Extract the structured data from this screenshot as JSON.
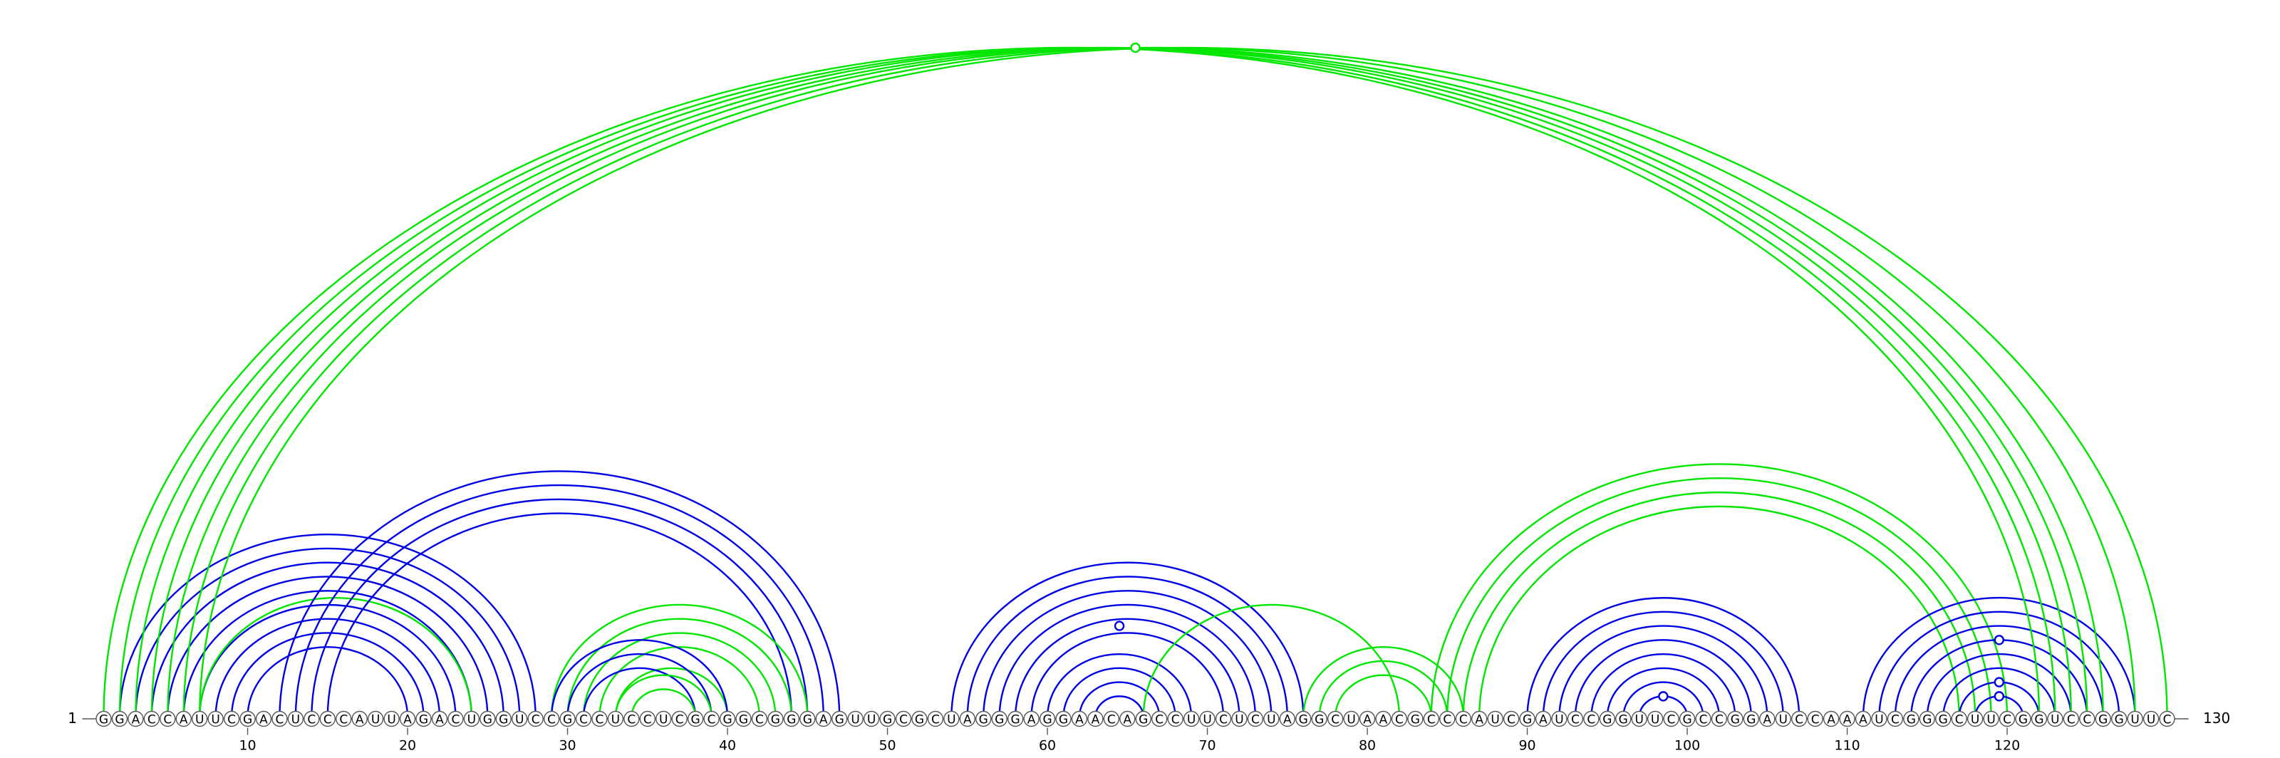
{
  "sequence": "GGACCAUUCGACUCCCAUUAGACUGGUCCGCCUCCUCGCGGCGGGAGUUGCGCUAGGGAGGAACAGCCUUCUCUAGGCUAACGCCCAUCGAUCCGGUUCGCCGGAUCCAAAUCGGGCUUCGGUCCGGUUC",
  "start_label": "1",
  "end_label": "130",
  "tick_labels": [
    "10",
    "20",
    "30",
    "40",
    "50",
    "60",
    "70",
    "80",
    "90",
    "100",
    "110",
    "120"
  ],
  "colors": {
    "blue": "#0000e6",
    "green": "#00e600",
    "nucleotide_stroke": "#555555",
    "text": "#000000"
  },
  "arc_groups": [
    {
      "color": "blue",
      "pairs": [
        [
          2,
          28
        ],
        [
          3,
          27
        ],
        [
          4,
          26
        ],
        [
          5,
          25
        ],
        [
          6,
          24
        ],
        [
          7,
          23
        ],
        [
          8,
          22
        ],
        [
          9,
          21
        ],
        [
          10,
          20
        ]
      ]
    },
    {
      "color": "green",
      "pairs": [
        [
          7,
          24
        ]
      ]
    },
    {
      "color": "blue",
      "pairs": [
        [
          12,
          47
        ],
        [
          13,
          46
        ],
        [
          14,
          45
        ],
        [
          15,
          44
        ]
      ]
    },
    {
      "color": "green",
      "pairs": [
        [
          29,
          45
        ],
        [
          30,
          44
        ],
        [
          31,
          43
        ],
        [
          32,
          42
        ],
        [
          33,
          40
        ]
      ]
    },
    {
      "color": "blue",
      "pairs": [
        [
          29,
          40
        ],
        [
          30,
          39
        ],
        [
          31,
          38
        ]
      ]
    },
    {
      "color": "green",
      "pairs": [
        [
          33,
          39
        ],
        [
          34,
          38
        ]
      ]
    },
    {
      "color": "blue",
      "pairs": [
        [
          54,
          76
        ],
        [
          55,
          75
        ],
        [
          56,
          74
        ],
        [
          57,
          73
        ],
        [
          58,
          72
        ],
        [
          59,
          71
        ]
      ]
    },
    {
      "color": "blue",
      "pairs": [
        [
          60,
          69
        ],
        [
          61,
          68
        ],
        [
          62,
          67
        ],
        [
          63,
          66
        ]
      ]
    },
    {
      "color": "green",
      "pairs": [
        [
          66,
          82
        ],
        [
          76,
          86
        ],
        [
          77,
          85
        ],
        [
          78,
          84
        ]
      ]
    },
    {
      "color": "green",
      "pairs": [
        [
          84,
          120
        ],
        [
          85,
          119
        ],
        [
          86,
          118
        ],
        [
          87,
          117
        ]
      ]
    },
    {
      "color": "blue",
      "pairs": [
        [
          90,
          107
        ],
        [
          91,
          106
        ],
        [
          92,
          105
        ],
        [
          93,
          104
        ],
        [
          94,
          103
        ],
        [
          95,
          102
        ],
        [
          96,
          101
        ],
        [
          97,
          100
        ]
      ]
    },
    {
      "color": "blue",
      "pairs": [
        [
          111,
          128
        ],
        [
          112,
          127
        ],
        [
          113,
          126
        ],
        [
          114,
          125
        ],
        [
          115,
          124
        ],
        [
          116,
          123
        ],
        [
          117,
          122
        ],
        [
          118,
          121
        ]
      ]
    },
    {
      "color": "green",
      "pairs": [
        [
          1,
          122
        ],
        [
          2,
          123
        ],
        [
          3,
          124
        ],
        [
          4,
          125
        ],
        [
          5,
          126
        ],
        [
          6,
          128
        ],
        [
          7,
          130
        ]
      ]
    }
  ],
  "open_markers": [
    {
      "color": "green",
      "pos": 65.5,
      "span": 129
    },
    {
      "color": "blue",
      "pos": 64.5,
      "span": 13
    },
    {
      "color": "blue",
      "pos": 98.5,
      "span": 3
    },
    {
      "color": "blue",
      "pos": 119.5,
      "span": 11
    },
    {
      "color": "blue",
      "pos": 119.5,
      "span": 5
    },
    {
      "color": "blue",
      "pos": 119.5,
      "span": 3
    }
  ]
}
